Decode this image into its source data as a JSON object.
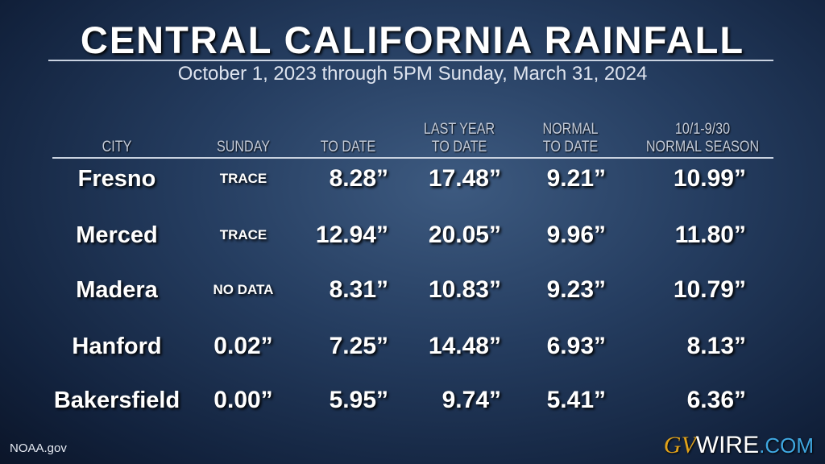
{
  "header": {
    "title": "CENTRAL CALIFORNIA RAINFALL",
    "subtitle": "October 1, 2023  through  5PM Sunday, March 31, 2024"
  },
  "table": {
    "columns": [
      [
        "CITY"
      ],
      [
        "SUNDAY"
      ],
      [
        "TO DATE"
      ],
      [
        "LAST YEAR",
        "TO DATE"
      ],
      [
        "NORMAL",
        "TO DATE"
      ],
      [
        "10/1-9/30",
        "NORMAL SEASON"
      ]
    ],
    "rows": [
      [
        "Fresno",
        "TRACE",
        "8.28”",
        "17.48”",
        "9.21”",
        "10.99”"
      ],
      [
        "Merced",
        "TRACE",
        "12.94”",
        "20.05”",
        "9.96”",
        "11.80”"
      ],
      [
        "Madera",
        "NO DATA",
        "8.31”",
        "10.83”",
        "9.23”",
        "10.79”"
      ],
      [
        "Hanford",
        "0.02”",
        "7.25”",
        "14.48”",
        "6.93”",
        "8.13”"
      ],
      [
        "Bakersfield",
        "0.00”",
        "5.95”",
        "9.74”",
        "5.41”",
        "6.36”"
      ]
    ]
  },
  "footer": {
    "source": "NOAA.gov",
    "logo": [
      "GV",
      "WIRE",
      ".COM"
    ]
  }
}
